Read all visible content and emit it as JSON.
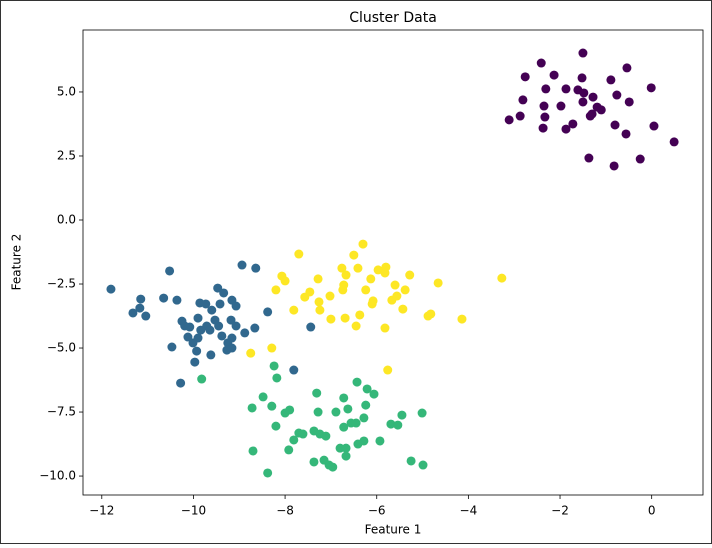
{
  "chart_data": {
    "type": "scatter",
    "title": "Cluster Data",
    "xlabel": "Feature 1",
    "ylabel": "Feature 2",
    "xlim": [
      -12.41,
      1.12
    ],
    "ylim": [
      -10.74,
      7.42
    ],
    "xticks": [
      {
        "value": -12,
        "label": "−12"
      },
      {
        "value": -10,
        "label": "−10"
      },
      {
        "value": -8,
        "label": "−8"
      },
      {
        "value": -6,
        "label": "−6"
      },
      {
        "value": -4,
        "label": "−4"
      },
      {
        "value": -2,
        "label": "−2"
      },
      0
    ],
    "yticks": [
      {
        "value": -10,
        "label": "−10.0"
      },
      {
        "value": -7.5,
        "label": "−7.5"
      },
      {
        "value": -5,
        "label": "−5.0"
      },
      {
        "value": -2.5,
        "label": "−2.5"
      },
      {
        "value": 0,
        "label": "0.0"
      },
      {
        "value": 2.5,
        "label": "2.5"
      },
      {
        "value": 5,
        "label": "5.0"
      }
    ],
    "series": [
      {
        "color": "#440154",
        "x": [
          -1.5,
          -2.41,
          -0.54,
          -2.13,
          -2.76,
          -1.52,
          -0.89,
          -2.31,
          -1.87,
          -2.81,
          -1.61,
          -0.76,
          -0.01,
          -1.48,
          -1.28,
          -0.49,
          -2.35,
          -1.98,
          -1.5,
          -1.19,
          -2.87,
          -2.33,
          -1.3,
          -1.1,
          -1.34,
          -3.11,
          -2.37,
          -1.87,
          -1.72,
          -0.8,
          0.05,
          -0.56,
          0.49,
          -1.37,
          -0.25,
          -0.82
        ],
        "values": [
          6.52,
          6.13,
          5.94,
          5.66,
          5.59,
          5.55,
          5.47,
          5.12,
          5.12,
          4.69,
          5.08,
          4.88,
          5.16,
          4.96,
          4.8,
          4.61,
          4.45,
          4.45,
          4.61,
          4.41,
          4.06,
          4.02,
          4.14,
          4.3,
          4.06,
          3.91,
          3.59,
          3.55,
          3.75,
          3.71,
          3.67,
          3.36,
          3.05,
          2.42,
          2.38,
          2.11
        ]
      },
      {
        "color": "#31688e",
        "x": [
          -11.8,
          -10.52,
          -11.15,
          -10.36,
          -9.47,
          -8.94,
          -8.64,
          -10.65,
          -9.86,
          -9.73,
          -9.34,
          -9.16,
          -11.17,
          -11.32,
          -11.04,
          -10.25,
          -9.9,
          -9.6,
          -9.42,
          -9.07,
          -8.66,
          -8.38,
          -10.19,
          -10.08,
          -9.71,
          -9.53,
          -9.18,
          -9.84,
          -9.64,
          -9.45,
          -9.07,
          -10.12,
          -9.9,
          -9.38,
          -9.16,
          -8.88,
          -10.47,
          -10.01,
          -9.25,
          -9.16,
          -9.93,
          -9.62,
          -9.27,
          -7.44,
          -7.81,
          -10.28,
          -9.97
        ],
        "values": [
          -2.7,
          -1.99,
          -3.09,
          -3.13,
          -2.66,
          -1.76,
          -1.88,
          -3.05,
          -3.24,
          -3.28,
          -2.85,
          -3.13,
          -3.44,
          -3.63,
          -3.75,
          -3.95,
          -3.83,
          -3.52,
          -3.28,
          -3.36,
          -4.22,
          -3.59,
          -4.14,
          -4.18,
          -4.14,
          -3.91,
          -3.91,
          -4.3,
          -4.3,
          -4.14,
          -4.14,
          -4.57,
          -4.61,
          -4.53,
          -4.61,
          -4.41,
          -4.96,
          -4.8,
          -4.8,
          -5.0,
          -5.12,
          -5.27,
          -5.08,
          -4.18,
          -5.86,
          -6.37,
          -5.55
        ]
      },
      {
        "color": "#35b779",
        "x": [
          -9.82,
          -8.24,
          -8.18,
          -8.72,
          -8.48,
          -8.29,
          -8.0,
          -7.9,
          -7.31,
          -6.43,
          -6.21,
          -6.72,
          -6.06,
          -8.2,
          -7.28,
          -6.89,
          -6.63,
          -6.24,
          -6.56,
          -6.45,
          -5.45,
          -7.81,
          -7.7,
          -7.61,
          -7.24,
          -7.11,
          -7.37,
          -6.72,
          -6.28,
          -5.69,
          -5.54,
          -5.01,
          -8.7,
          -7.92,
          -6.8,
          -6.67,
          -6.41,
          -6.28,
          -5.93,
          -7.37,
          -7.15,
          -7.04,
          -6.96,
          -6.67,
          -5.25,
          -4.99,
          -8.38
        ],
        "values": [
          -6.21,
          -5.7,
          -6.17,
          -7.34,
          -6.91,
          -7.27,
          -7.54,
          -7.42,
          -6.76,
          -6.33,
          -6.6,
          -6.95,
          -6.8,
          -8.05,
          -7.5,
          -7.5,
          -7.38,
          -7.23,
          -7.93,
          -7.93,
          -7.62,
          -8.59,
          -8.32,
          -8.36,
          -8.36,
          -8.44,
          -8.24,
          -8.09,
          -7.73,
          -7.97,
          -8.01,
          -7.54,
          -9.02,
          -8.98,
          -8.91,
          -8.91,
          -8.75,
          -8.63,
          -8.63,
          -9.45,
          -9.38,
          -9.57,
          -9.65,
          -9.22,
          -9.41,
          -9.57,
          -9.88
        ]
      },
      {
        "color": "#fde725",
        "x": [
          -7.7,
          -6.3,
          -6.5,
          -5.8,
          -5.28,
          -5.97,
          -5.82,
          -6.41,
          -6.76,
          -6.67,
          -7.28,
          -8.07,
          -8.0,
          -8.2,
          -7.57,
          -7.46,
          -6.72,
          -6.74,
          -6.24,
          -6.13,
          -5.6,
          -5.67,
          -6.08,
          -5.56,
          -5.38,
          -4.66,
          -3.27,
          -7.26,
          -7.81,
          -7.24,
          -7.0,
          -6.69,
          -6.37,
          -6.1,
          -5.82,
          -5.43,
          -4.88,
          -4.82,
          -4.14,
          -8.75,
          -8.29,
          -5.76,
          -6.45,
          -7.02
        ],
        "values": [
          -1.33,
          -0.94,
          -1.37,
          -1.84,
          -2.15,
          -1.95,
          -2.07,
          -1.88,
          -1.88,
          -2.15,
          -2.3,
          -2.19,
          -2.38,
          -2.73,
          -3.01,
          -2.81,
          -2.54,
          -2.73,
          -2.73,
          -2.3,
          -2.54,
          -3.13,
          -3.16,
          -2.97,
          -2.73,
          -2.46,
          -2.27,
          -3.2,
          -3.52,
          -3.52,
          -3.87,
          -3.83,
          -3.71,
          -3.28,
          -4.22,
          -3.48,
          -3.75,
          -3.67,
          -3.87,
          -5.2,
          -5.0,
          -5.86,
          -4.14,
          -2.97
        ]
      }
    ]
  }
}
